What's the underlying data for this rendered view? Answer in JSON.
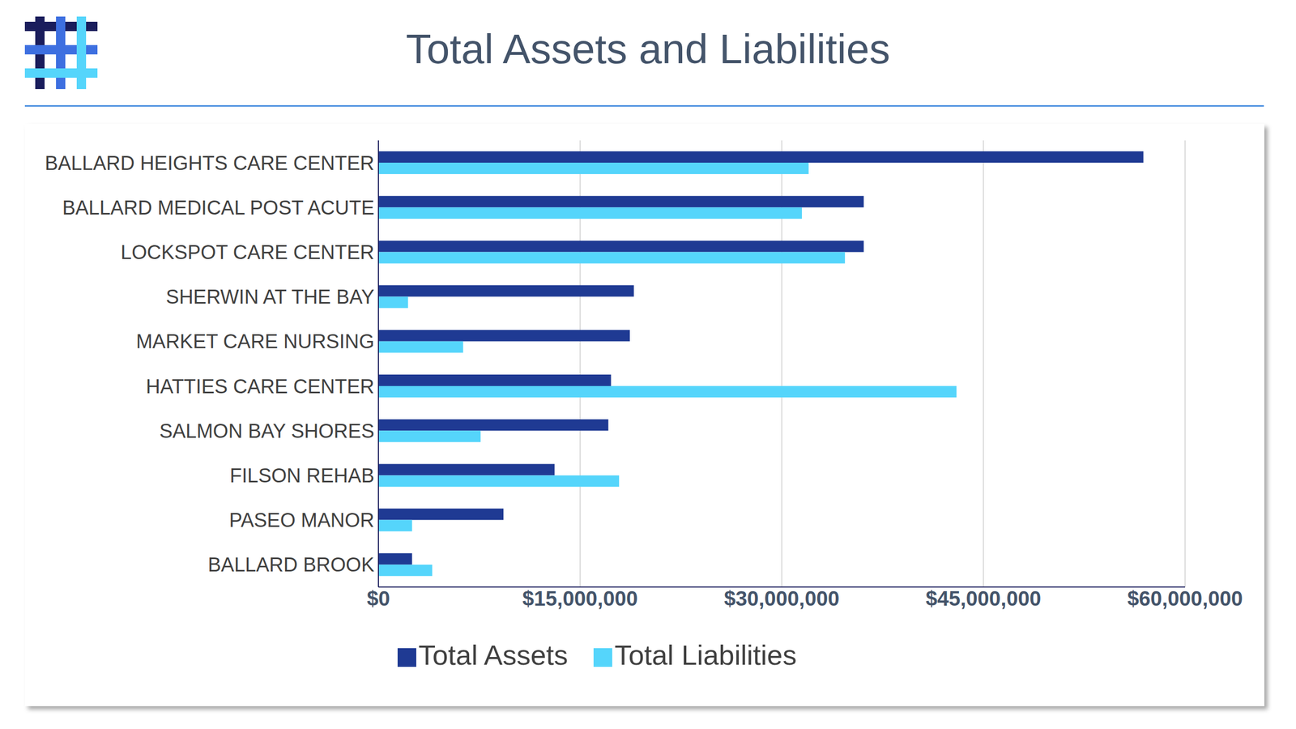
{
  "chart_data": {
    "type": "bar",
    "title": "Total Assets and Liabilities",
    "orientation": "horizontal",
    "categories": [
      "BALLARD HEIGHTS CARE CENTER",
      "BALLARD MEDICAL POST ACUTE",
      "LOCKSPOT CARE CENTER",
      "SHERWIN AT THE BAY",
      "MARKET CARE NURSING",
      "HATTIES CARE CENTER",
      "SALMON BAY SHORES",
      "FILSON REHAB",
      "PASEO MANOR",
      "BALLARD BROOK"
    ],
    "series": [
      {
        "name": "Total Assets",
        "color": "#1f3a93",
        "values": [
          56900000,
          36100000,
          36100000,
          19000000,
          18700000,
          17300000,
          17100000,
          13100000,
          9300000,
          2500000
        ]
      },
      {
        "name": "Total Liabilities",
        "color": "#55d5fb",
        "values": [
          32000000,
          31500000,
          34700000,
          2200000,
          6300000,
          43000000,
          7600000,
          17900000,
          2500000,
          4000000
        ]
      }
    ],
    "xlim": [
      0,
      60000000
    ],
    "xticks": [
      {
        "value": 0,
        "label": "$0"
      },
      {
        "value": 15000000,
        "label": "$15,000,000"
      },
      {
        "value": 30000000,
        "label": "$30,000,000"
      },
      {
        "value": 45000000,
        "label": "$45,000,000"
      },
      {
        "value": 60000000,
        "label": "$60,000,000"
      }
    ],
    "grid": true,
    "legend": "bottom"
  }
}
